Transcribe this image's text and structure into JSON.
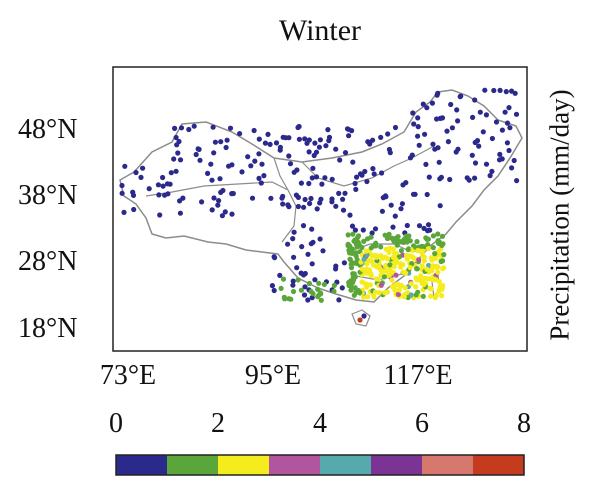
{
  "title": "Winter",
  "colorbar": {
    "label": "Precipitation (mm/day)",
    "ticks": [
      "0",
      "2",
      "4",
      "6",
      "8"
    ],
    "min": 0,
    "max": 8,
    "bins": [
      {
        "range": [
          0,
          1
        ],
        "color": "#2b2a8c"
      },
      {
        "range": [
          1,
          2
        ],
        "color": "#5aa63a"
      },
      {
        "range": [
          2,
          3
        ],
        "color": "#f4ec1c"
      },
      {
        "range": [
          3,
          4
        ],
        "color": "#b0559e"
      },
      {
        "range": [
          4,
          5
        ],
        "color": "#56a9ad"
      },
      {
        "range": [
          5,
          6
        ],
        "color": "#7b3493"
      },
      {
        "range": [
          6,
          7
        ],
        "color": "#d6786e"
      },
      {
        "range": [
          7,
          8
        ],
        "color": "#c43b1e"
      }
    ]
  },
  "axes": {
    "lat_ticks": [
      "48°N",
      "38°N",
      "28°N",
      "18°N"
    ],
    "lon_ticks": [
      "73°E",
      "95°E",
      "117°E"
    ]
  },
  "colors": {
    "border_line": "#8c8c8c",
    "frame": "#222222"
  }
}
